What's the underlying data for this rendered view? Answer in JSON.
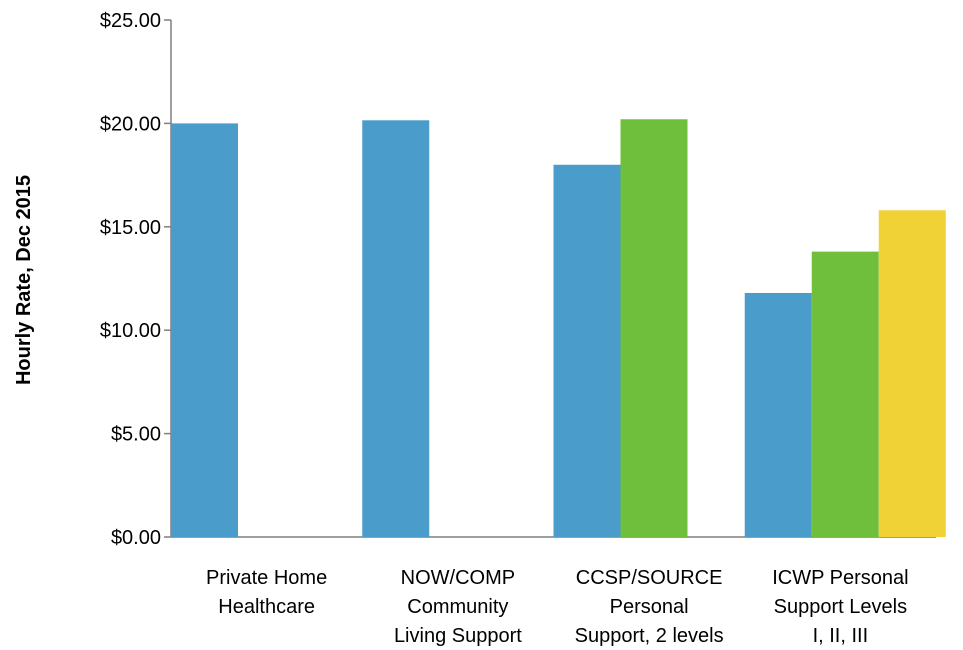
{
  "chart_data": {
    "type": "bar",
    "title": "",
    "xlabel": "",
    "ylabel": "Hourly Rate, Dec 2015",
    "ylim": [
      0,
      25
    ],
    "y_ticks": [
      "$0.00",
      "$5.00",
      "$10.00",
      "$15.00",
      "$20.00",
      "$25.00"
    ],
    "y_tick_values": [
      0,
      5,
      10,
      15,
      20,
      25
    ],
    "grid": false,
    "legend": "none",
    "categories": [
      [
        "Private Home",
        "Healthcare"
      ],
      [
        "NOW/COMP",
        "Community",
        "Living Support"
      ],
      [
        "CCSP/SOURCE",
        "Personal",
        "Support, 2 levels"
      ],
      [
        "ICWP Personal",
        "Support Levels",
        "I, II, III"
      ]
    ],
    "series": [
      {
        "color": "#4a9ccb",
        "values": [
          20.0,
          20.15,
          18.0,
          11.8
        ]
      },
      {
        "color": "#6fbf3c",
        "values": [
          null,
          null,
          20.2,
          13.8
        ]
      },
      {
        "color": "#f0d136",
        "values": [
          null,
          null,
          null,
          15.8
        ]
      }
    ]
  }
}
